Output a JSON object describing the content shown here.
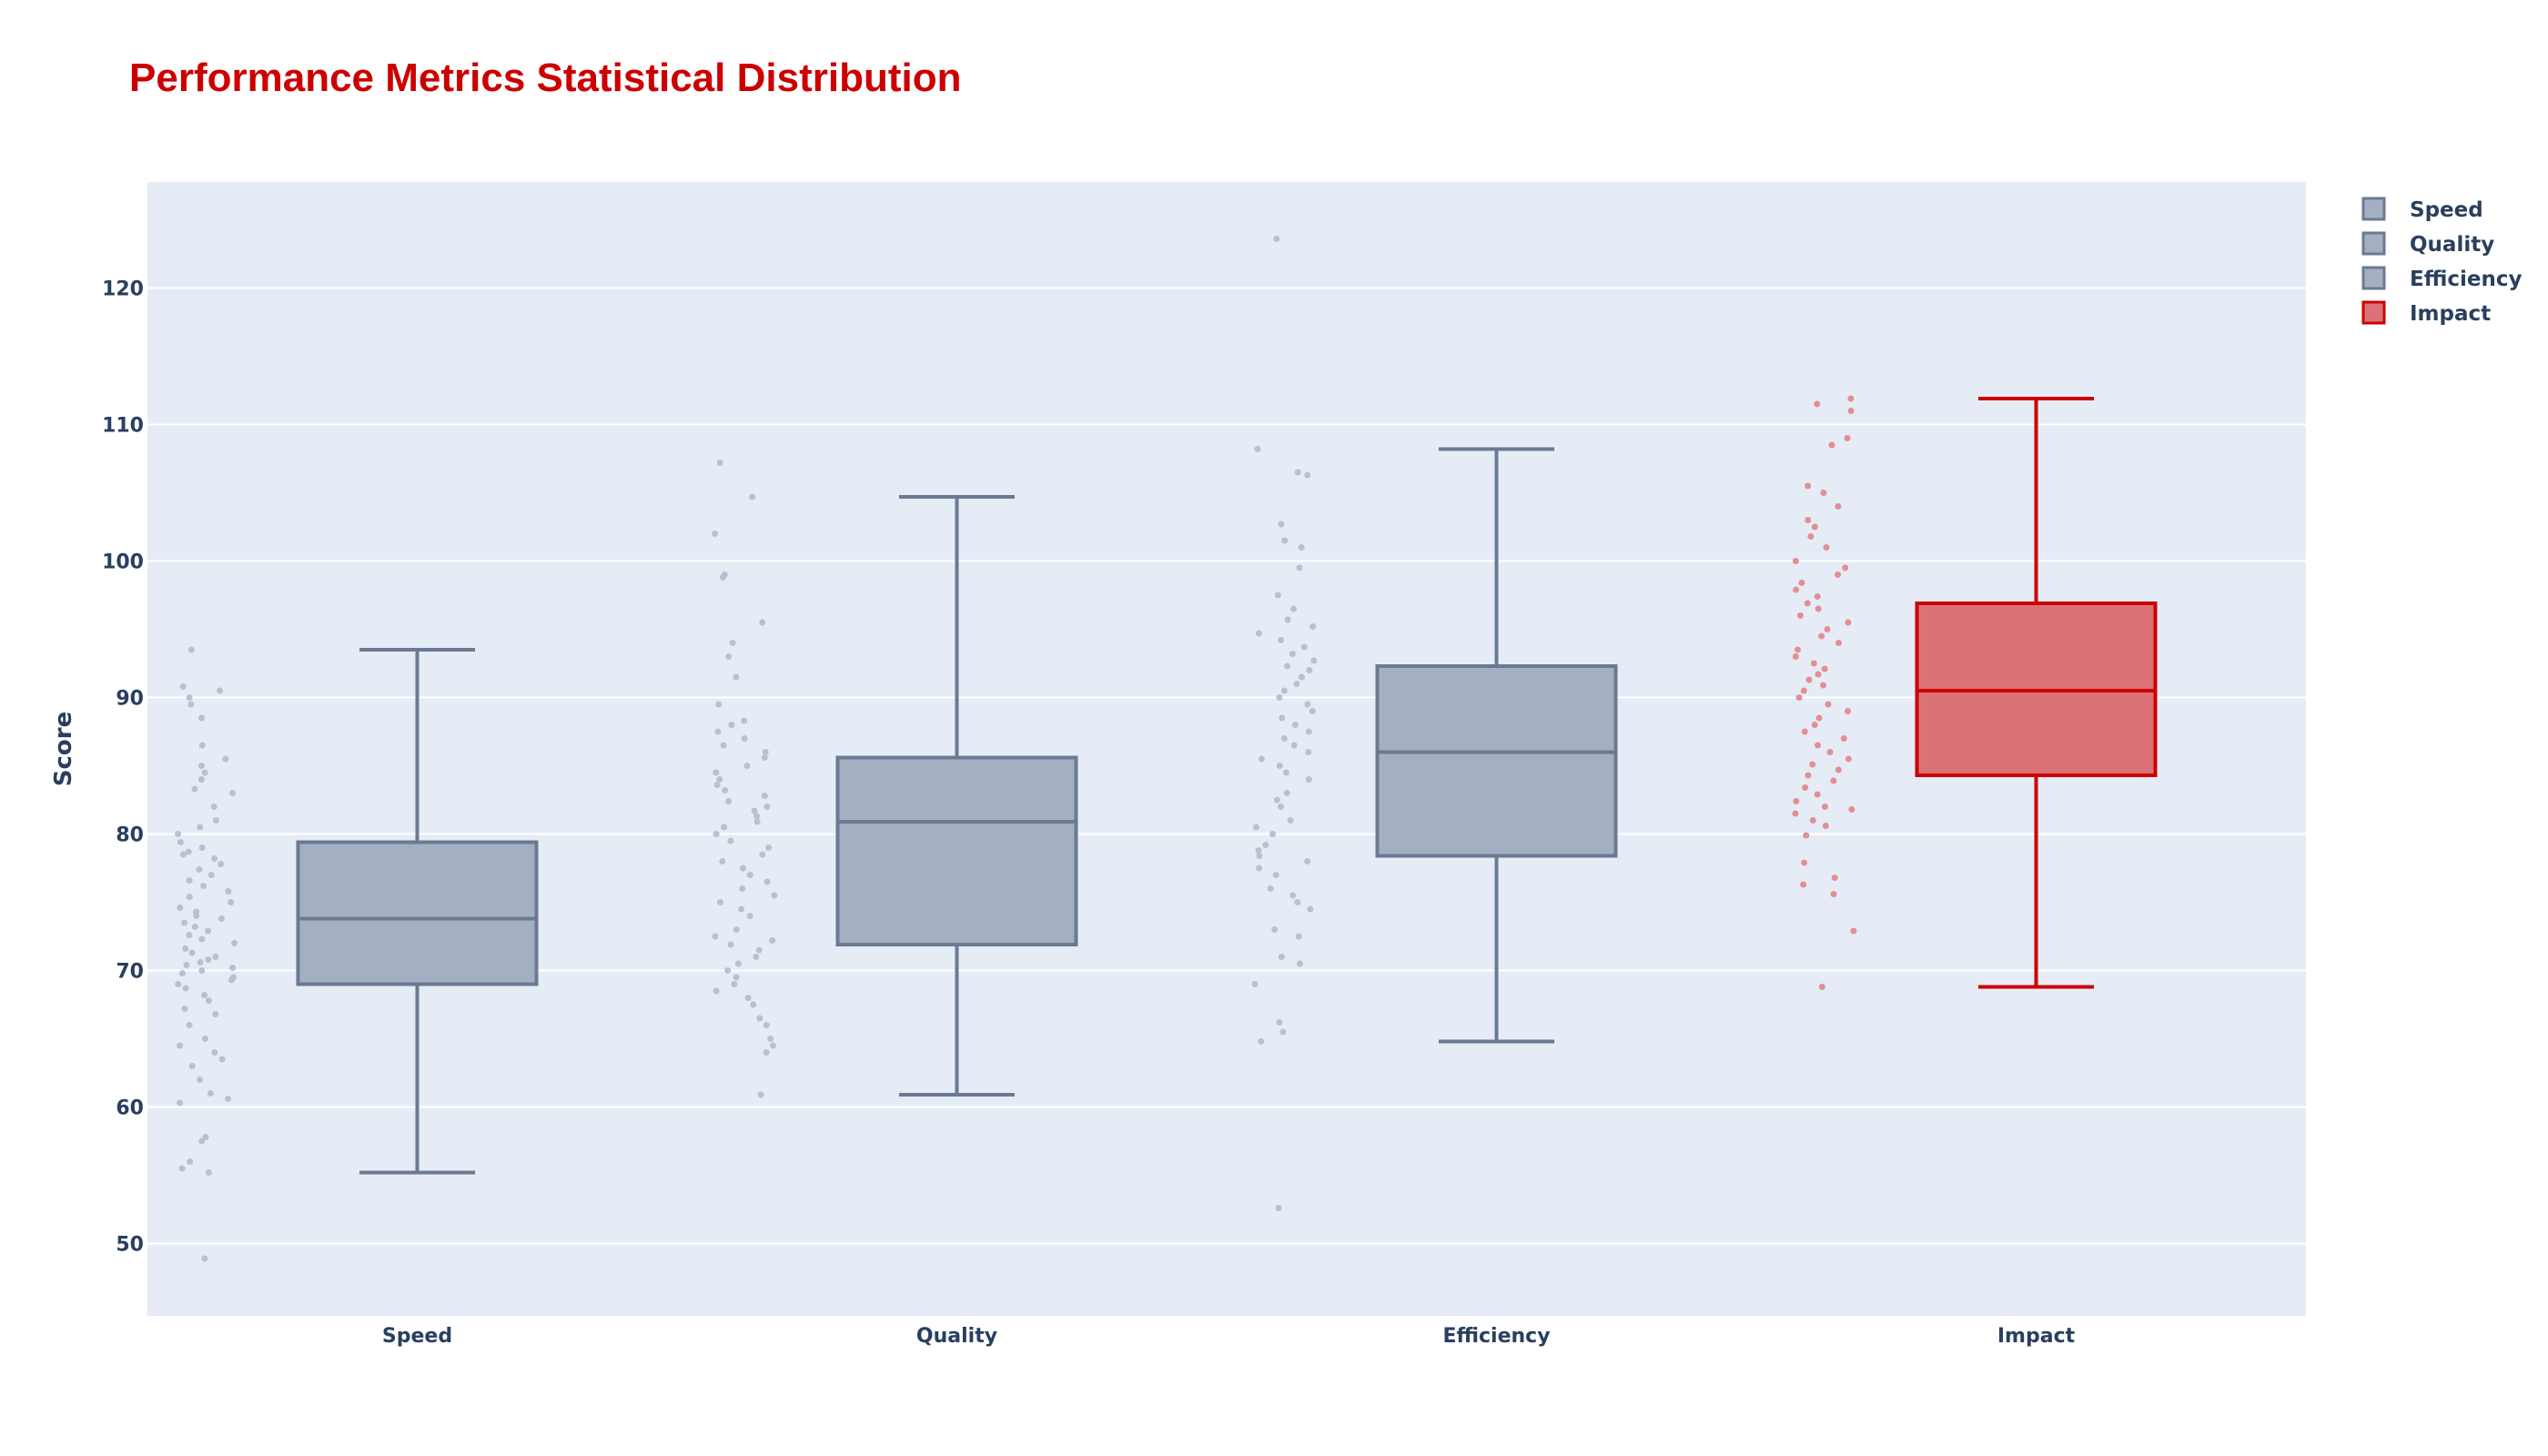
{
  "chart_data": {
    "type": "box",
    "title": "Performance Metrics Statistical Distribution",
    "xlabel": "",
    "ylabel": "Score",
    "ylim": [
      44.7,
      128.0
    ],
    "yticks": [
      50,
      60,
      70,
      80,
      90,
      100,
      110,
      120
    ],
    "categories": [
      "Speed",
      "Quality",
      "Efficiency",
      "Impact"
    ],
    "legend_position": "top-right",
    "grid": true,
    "colors": {
      "title": "#cc0000",
      "plot_bg": "#e5ecf6",
      "grid": "#ffffff",
      "default_line": "#6a7a92",
      "default_fill": "#a4afc1",
      "default_points": "#b9c1d0",
      "highlight_line": "#cc0000",
      "highlight_fill": "#db7278",
      "highlight_points": "#e28f93"
    },
    "series": [
      {
        "name": "Speed",
        "highlight": false,
        "lower_whisker": 55.2,
        "q1": 69.0,
        "median": 73.8,
        "q3": 79.4,
        "upper_whisker": 93.5,
        "points": [
          48.9,
          55.2,
          55.5,
          56.0,
          57.5,
          57.8,
          60.3,
          60.6,
          61.0,
          62.0,
          63.0,
          63.5,
          64.0,
          64.5,
          65.0,
          66.0,
          66.8,
          67.2,
          67.8,
          68.2,
          68.7,
          69.0,
          69.3,
          69.5,
          69.8,
          70.0,
          70.2,
          70.4,
          70.6,
          70.8,
          71.0,
          71.3,
          71.6,
          72.0,
          72.3,
          72.6,
          72.9,
          73.2,
          73.5,
          73.8,
          74.0,
          74.3,
          74.6,
          75.0,
          75.4,
          75.8,
          76.2,
          76.6,
          77.0,
          77.4,
          77.8,
          78.2,
          78.5,
          78.7,
          79.0,
          79.4,
          80.0,
          80.5,
          81.0,
          82.0,
          83.0,
          83.3,
          84.0,
          84.5,
          85.0,
          85.5,
          86.5,
          88.5,
          89.5,
          90.0,
          90.5,
          90.8,
          93.5
        ]
      },
      {
        "name": "Quality",
        "highlight": false,
        "lower_whisker": 60.9,
        "q1": 71.9,
        "median": 80.9,
        "q3": 85.6,
        "upper_whisker": 104.7,
        "points": [
          60.9,
          64.0,
          64.5,
          65.0,
          66.0,
          66.5,
          67.5,
          68.0,
          68.5,
          69.0,
          69.5,
          70.0,
          70.5,
          71.0,
          71.5,
          71.9,
          72.2,
          72.5,
          73.0,
          74.0,
          74.5,
          75.0,
          75.5,
          76.0,
          76.5,
          77.0,
          77.5,
          78.0,
          78.5,
          79.0,
          79.5,
          80.0,
          80.5,
          80.9,
          81.3,
          81.7,
          82.0,
          82.4,
          82.8,
          83.2,
          83.6,
          84.0,
          84.5,
          85.0,
          85.6,
          86.0,
          86.5,
          87.0,
          87.5,
          88.0,
          88.3,
          89.5,
          91.5,
          93.0,
          94.0,
          95.5,
          98.8,
          99.0,
          102.0,
          104.7,
          107.2
        ]
      },
      {
        "name": "Efficiency",
        "highlight": false,
        "lower_whisker": 64.8,
        "q1": 78.4,
        "median": 86.0,
        "q3": 92.3,
        "upper_whisker": 108.2,
        "points": [
          52.6,
          64.8,
          65.5,
          66.2,
          69.0,
          70.5,
          71.0,
          72.5,
          73.0,
          74.5,
          75.0,
          75.5,
          76.0,
          77.0,
          77.5,
          78.0,
          78.4,
          78.8,
          79.2,
          80.0,
          80.5,
          81.0,
          82.0,
          82.5,
          83.0,
          84.0,
          84.5,
          85.0,
          85.5,
          86.0,
          86.5,
          87.0,
          87.5,
          88.0,
          88.5,
          89.0,
          89.5,
          90.0,
          90.5,
          91.0,
          91.5,
          92.0,
          92.3,
          92.7,
          93.2,
          93.7,
          94.2,
          94.7,
          95.2,
          95.7,
          96.5,
          97.5,
          99.5,
          101.0,
          101.5,
          102.7,
          106.3,
          106.5,
          108.2,
          123.6
        ]
      },
      {
        "name": "Impact",
        "highlight": true,
        "lower_whisker": 68.8,
        "q1": 84.3,
        "median": 90.5,
        "q3": 96.9,
        "upper_whisker": 111.9,
        "points": [
          68.8,
          72.9,
          75.6,
          76.3,
          76.8,
          77.9,
          79.9,
          80.6,
          81.0,
          81.5,
          81.8,
          82.0,
          82.4,
          82.9,
          83.4,
          83.9,
          84.3,
          84.7,
          85.1,
          85.5,
          86.0,
          86.5,
          87.0,
          87.5,
          88.0,
          88.5,
          89.0,
          89.5,
          90.0,
          90.5,
          90.9,
          91.3,
          91.7,
          92.1,
          92.5,
          93.0,
          93.5,
          94.0,
          94.5,
          95.0,
          95.5,
          96.0,
          96.5,
          96.9,
          97.4,
          97.9,
          98.4,
          99.0,
          99.5,
          100.0,
          101.0,
          101.8,
          102.5,
          103.0,
          104.0,
          105.0,
          105.5,
          108.5,
          109.0,
          111.0,
          111.5,
          111.9
        ]
      }
    ]
  }
}
